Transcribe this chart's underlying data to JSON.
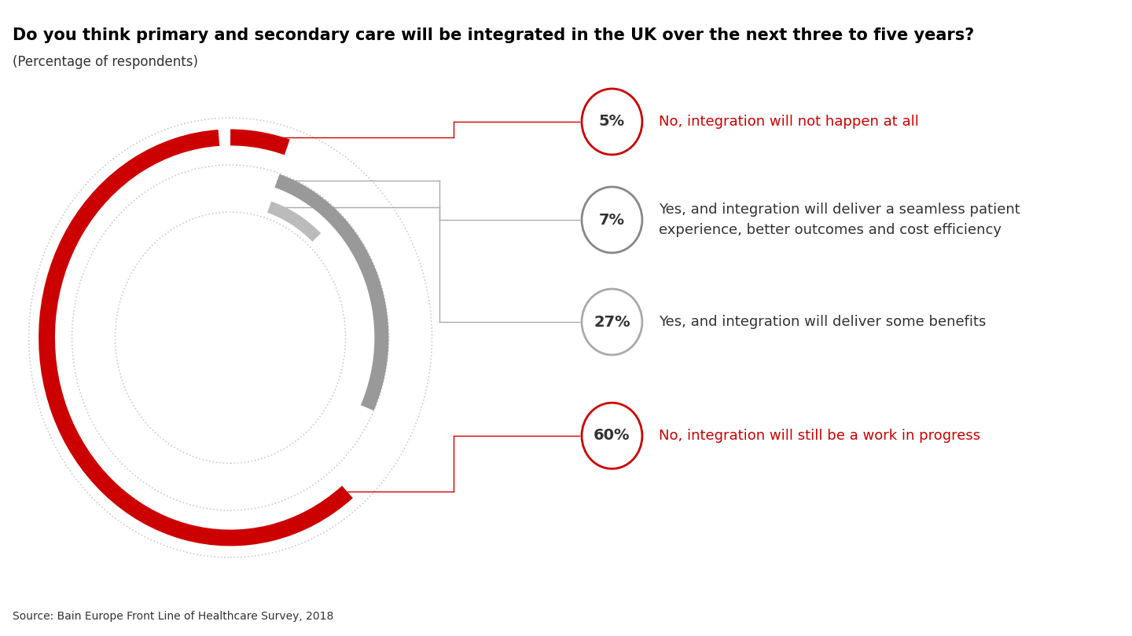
{
  "title": "Do you think primary and secondary care will be integrated in the UK over the next three to five years?",
  "subtitle": "(Percentage of respondents)",
  "source": "Source: Bain Europe Front Line of Healthcare Survey, 2018",
  "segments": [
    {
      "value": 5,
      "color": "#cc0000",
      "label": "5%",
      "text": "No, integration will not happen at all",
      "text_color": "#cc0000",
      "circle_color": "#cc0000"
    },
    {
      "value": 7,
      "color": "#999999",
      "label": "7%",
      "text": "Yes, and integration will deliver a seamless patient\nexperience, better outcomes and cost efficiency",
      "text_color": "#333333",
      "circle_color": "#999999"
    },
    {
      "value": 27,
      "color": "#999999",
      "label": "27%",
      "text": "Yes, and integration will deliver some benefits",
      "text_color": "#333333",
      "circle_color": "#bbbbbb"
    },
    {
      "value": 60,
      "color": "#cc0000",
      "label": "60%",
      "text": "No, integration will still be a work in progress",
      "text_color": "#cc0000",
      "circle_color": "#cc0000"
    }
  ],
  "bg_color": "#ffffff",
  "red": "#cc0000",
  "gray": "#999999",
  "light_gray": "#bbbbbb",
  "title_fontsize": 15,
  "subtitle_fontsize": 12,
  "label_fontsize": 14,
  "text_fontsize": 13,
  "source_fontsize": 10
}
